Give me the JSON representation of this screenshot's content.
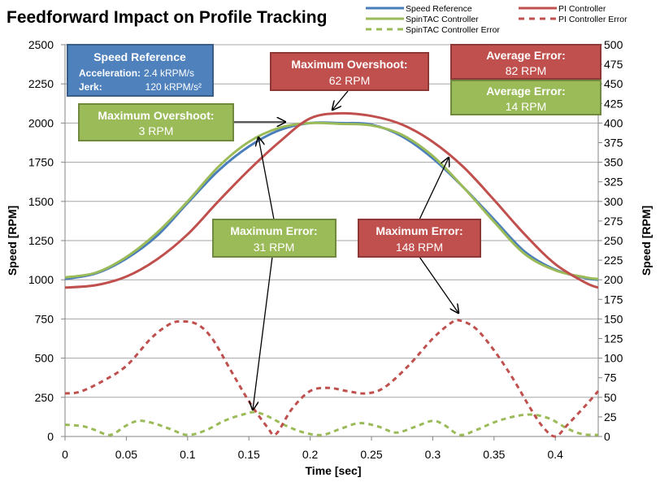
{
  "chart_data": {
    "type": "line",
    "title": "Feedforward Impact on Profile Tracking",
    "xlabel": "Time [sec]",
    "ylabel_left": "Speed [RPM]",
    "ylabel_right": "Speed [RPM]",
    "xlim": [
      0,
      0.435
    ],
    "ylim_left": [
      0,
      2500
    ],
    "ylim_right": [
      0,
      500
    ],
    "x_ticks": [
      "0",
      "0.05",
      "0.1",
      "0.15",
      "0.2",
      "0.25",
      "0.3",
      "0.35",
      "0.4"
    ],
    "y_ticks_left": [
      "0",
      "250",
      "500",
      "750",
      "1000",
      "1250",
      "1500",
      "1750",
      "2000",
      "2250",
      "2500"
    ],
    "y_ticks_right": [
      "0",
      "25",
      "50",
      "75",
      "100",
      "125",
      "150",
      "175",
      "200",
      "225",
      "250",
      "275",
      "300",
      "325",
      "350",
      "375",
      "400",
      "425",
      "450",
      "475",
      "500"
    ],
    "grid": "horizontal",
    "legend_position": "top-right",
    "series": [
      {
        "name": "Speed Reference",
        "axis": "left",
        "color": "#4a7ebb",
        "dash": false,
        "x": [
          0,
          0.025,
          0.05,
          0.075,
          0.1,
          0.125,
          0.15,
          0.175,
          0.2,
          0.225,
          0.25,
          0.275,
          0.3,
          0.325,
          0.35,
          0.375,
          0.4,
          0.425,
          0.435
        ],
        "y": [
          1005,
          1040,
          1135,
          1280,
          1490,
          1695,
          1850,
          1955,
          2000,
          2000,
          1990,
          1915,
          1775,
          1590,
          1385,
          1180,
          1065,
          1010,
          1000
        ]
      },
      {
        "name": "SpinTAC Controller",
        "axis": "left",
        "color": "#9bbb59",
        "dash": false,
        "x": [
          0,
          0.025,
          0.05,
          0.075,
          0.1,
          0.125,
          0.15,
          0.175,
          0.2,
          0.225,
          0.25,
          0.275,
          0.3,
          0.325,
          0.35,
          0.375,
          0.4,
          0.425,
          0.435
        ],
        "y": [
          1015,
          1045,
          1145,
          1300,
          1500,
          1720,
          1880,
          1970,
          2000,
          1995,
          1985,
          1925,
          1790,
          1590,
          1370,
          1165,
          1060,
          1015,
          1005
        ]
      },
      {
        "name": "PI Controller",
        "axis": "left",
        "color": "#c0504d",
        "dash": false,
        "x": [
          0,
          0.025,
          0.05,
          0.075,
          0.1,
          0.125,
          0.15,
          0.175,
          0.2,
          0.225,
          0.25,
          0.275,
          0.3,
          0.325,
          0.35,
          0.375,
          0.4,
          0.425,
          0.435
        ],
        "y": [
          950,
          965,
          1020,
          1130,
          1290,
          1500,
          1700,
          1880,
          2030,
          2062,
          2045,
          1990,
          1880,
          1720,
          1510,
          1290,
          1100,
          980,
          950
        ]
      },
      {
        "name": "PI Controller Error",
        "axis": "right",
        "color": "#c0504d",
        "dash": true,
        "x": [
          0,
          0.012,
          0.03,
          0.05,
          0.07,
          0.085,
          0.095,
          0.108,
          0.12,
          0.135,
          0.15,
          0.165,
          0.172,
          0.185,
          0.2,
          0.215,
          0.23,
          0.245,
          0.26,
          0.28,
          0.3,
          0.315,
          0.322,
          0.335,
          0.35,
          0.365,
          0.38,
          0.39,
          0.4,
          0.41,
          0.425,
          0.435
        ],
        "y": [
          55,
          57,
          70,
          90,
          125,
          143,
          147,
          143,
          125,
          85,
          45,
          12,
          3,
          35,
          58,
          62,
          58,
          55,
          62,
          90,
          125,
          145,
          148,
          138,
          110,
          75,
          35,
          12,
          0,
          15,
          40,
          58
        ]
      },
      {
        "name": "SpinTAC Controller Error",
        "axis": "right",
        "color": "#9bbb59",
        "dash": true,
        "x": [
          0,
          0.015,
          0.025,
          0.037,
          0.05,
          0.06,
          0.072,
          0.085,
          0.1,
          0.115,
          0.13,
          0.145,
          0.155,
          0.165,
          0.18,
          0.195,
          0.21,
          0.225,
          0.24,
          0.255,
          0.27,
          0.285,
          0.3,
          0.31,
          0.322,
          0.335,
          0.35,
          0.365,
          0.38,
          0.395,
          0.41,
          0.422,
          0.435
        ],
        "y": [
          15,
          13,
          8,
          2,
          14,
          20,
          17,
          10,
          2,
          8,
          20,
          28,
          31,
          26,
          14,
          5,
          2,
          10,
          17,
          13,
          5,
          12,
          20,
          14,
          2,
          8,
          18,
          25,
          28,
          23,
          10,
          3,
          2
        ]
      }
    ],
    "annotations": [
      {
        "title": "Speed Reference",
        "lines": [
          [
            "Acceleration:",
            "2.4 kRPM/s"
          ],
          [
            "Jerk:",
            "120 kRPM/s²"
          ]
        ],
        "color": "#4f81bd"
      },
      {
        "title": "Maximum Overshoot:",
        "value": "62 RPM",
        "color": "#c0504d"
      },
      {
        "title": "Average Error:",
        "value": "82 RPM",
        "color": "#c0504d"
      },
      {
        "title": "Average Error:",
        "value": "14 RPM",
        "color": "#9bbb59"
      },
      {
        "title": "Maximum Overshoot:",
        "value": "3 RPM",
        "color": "#9bbb59"
      },
      {
        "title": "Maximum Error:",
        "value": "31 RPM",
        "color": "#9bbb59"
      },
      {
        "title": "Maximum Error:",
        "value": "148 RPM",
        "color": "#c0504d"
      }
    ]
  }
}
